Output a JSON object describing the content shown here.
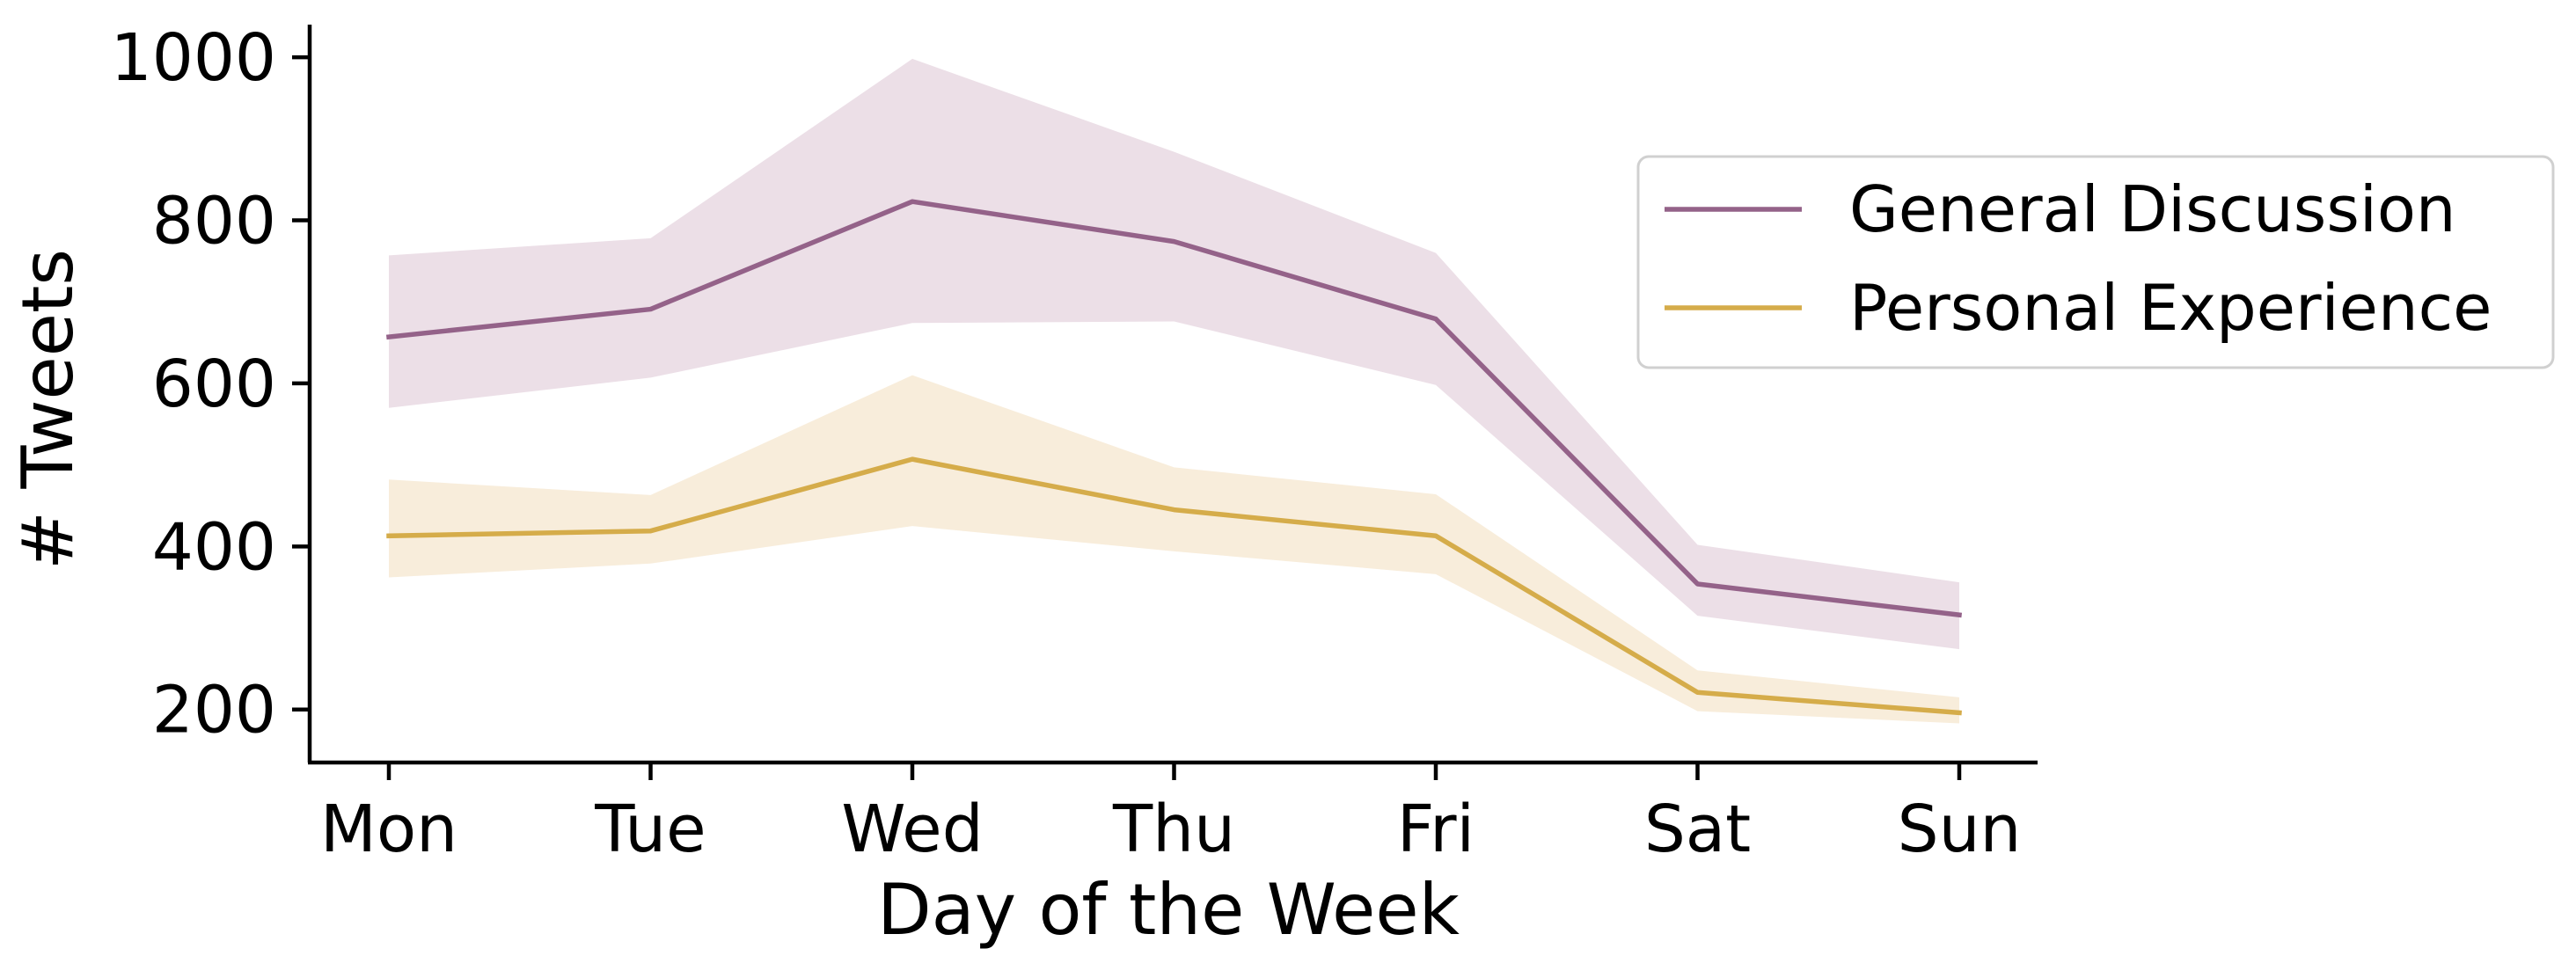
{
  "chart_data": {
    "type": "line",
    "title": "",
    "xlabel": "Day of the Week",
    "ylabel": "# Tweets",
    "categories": [
      "Mon",
      "Tue",
      "Wed",
      "Thu",
      "Fri",
      "Sat",
      "Sun"
    ],
    "ylim": [
      135,
      1040
    ],
    "yticks": [
      200,
      400,
      600,
      800,
      1000
    ],
    "ytick_labels": [
      "200",
      "400",
      "600",
      "800",
      "1000"
    ],
    "grid": false,
    "legend_position": "upper-right",
    "series": [
      {
        "name": "General Discussion",
        "color": "#946289",
        "band_color": "#ecdfe7",
        "values": [
          657,
          691,
          823,
          774,
          679,
          354,
          316
        ],
        "lower": [
          570,
          607,
          674,
          676,
          598,
          315,
          274
        ],
        "upper": [
          757,
          778,
          998,
          884,
          760,
          402,
          356
        ]
      },
      {
        "name": "Personal Experience",
        "color": "#d5ac4a",
        "band_color": "#f8eddb",
        "values": [
          413,
          419,
          507,
          445,
          413,
          221,
          196
        ],
        "lower": [
          362,
          379,
          425,
          394,
          366,
          198,
          183
        ],
        "upper": [
          482,
          463,
          610,
          497,
          464,
          248,
          215
        ]
      }
    ]
  }
}
